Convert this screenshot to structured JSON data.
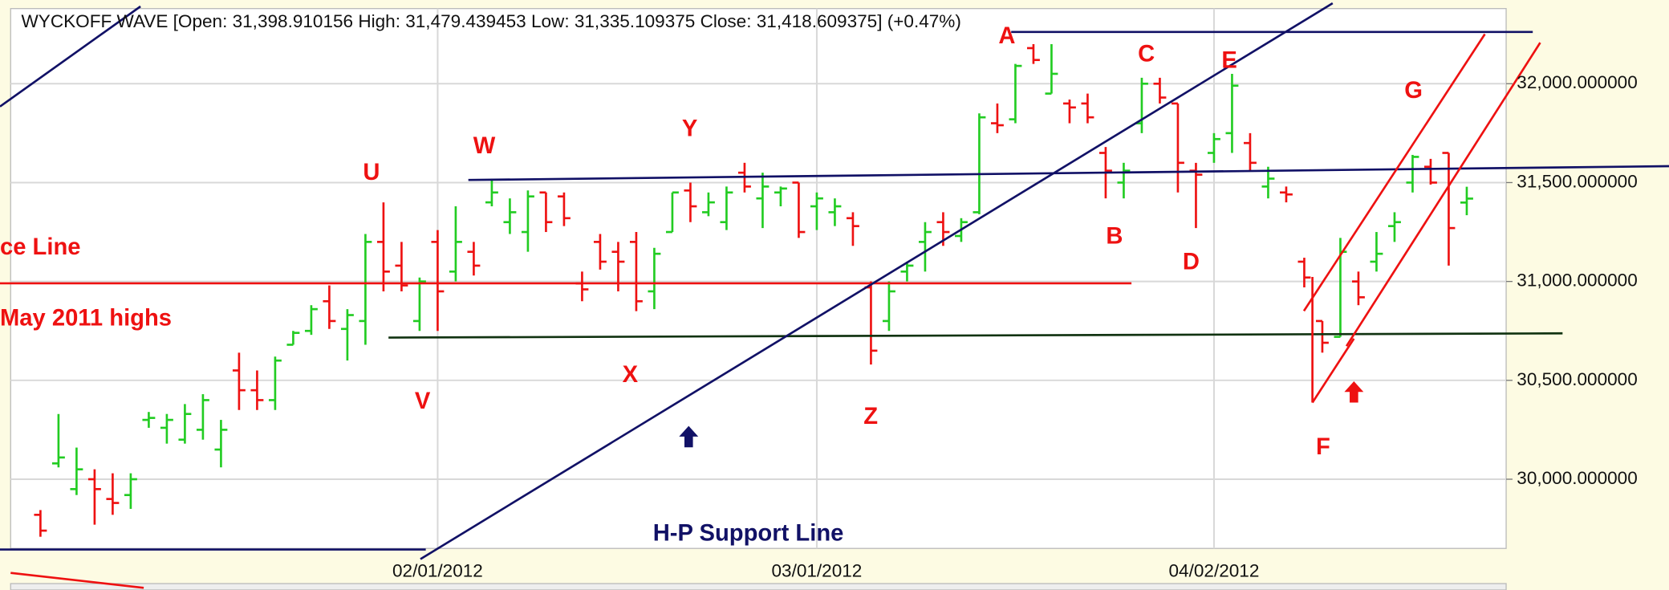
{
  "chart_data": {
    "type": "ohlc",
    "title": "WYCKOFF WAVE [Open: 31,398.910156  High: 31,479.439453  Low: 31,335.109375  Close: 31,418.609375] (+0.47%)",
    "categories": [
      null,
      null,
      null,
      null,
      null,
      null,
      null,
      null,
      null,
      null,
      null,
      null,
      null,
      null,
      null,
      null,
      null,
      null,
      null,
      null,
      null,
      null,
      "02/01/2012",
      null,
      null,
      null,
      null,
      null,
      null,
      null,
      null,
      null,
      null,
      null,
      null,
      null,
      null,
      null,
      null,
      null,
      null,
      null,
      null,
      "03/01/2012",
      null,
      null,
      null,
      null,
      null,
      null,
      null,
      null,
      null,
      null,
      null,
      null,
      null,
      null,
      null,
      null,
      null,
      null,
      null,
      null,
      null,
      "04/02/2012",
      null,
      null,
      null,
      null,
      null,
      null,
      null,
      null,
      null,
      null,
      null,
      null,
      null,
      null
    ],
    "open": [
      29820,
      30080,
      29950,
      30000,
      29900,
      29920,
      30300,
      30260,
      30200,
      30250,
      30150,
      30550,
      30450,
      30400,
      30680,
      30750,
      30900,
      30760,
      30800,
      31200,
      31080,
      30800,
      31200,
      31050,
      31150,
      31400,
      31300,
      31250,
      31450,
      31430,
      30990,
      31200,
      31150,
      31200,
      30950,
      31250,
      31460,
      31350,
      31300,
      31550,
      31420,
      31450,
      31500,
      31380,
      31350,
      31320,
      30970,
      30800,
      31050,
      31200,
      31300,
      31230,
      31350,
      31800,
      31820,
      32180,
      31950,
      31900,
      31900,
      31650,
      31500,
      31800,
      32000,
      31900,
      31560,
      31650,
      31750,
      31700,
      31480,
      31450,
      31100,
      30800,
      30720,
      31000,
      31100,
      31280,
      31500,
      31580,
      31650,
      31399
    ],
    "high": [
      29844,
      30330,
      30160,
      30050,
      30030,
      30030,
      30340,
      30330,
      30380,
      30430,
      30300,
      30640,
      30550,
      30620,
      30750,
      30880,
      30980,
      30860,
      31240,
      31400,
      31200,
      31020,
      31260,
      31380,
      31200,
      31520,
      31420,
      31460,
      31450,
      31450,
      31050,
      31240,
      31200,
      31250,
      31170,
      31450,
      31500,
      31450,
      31480,
      31600,
      31550,
      31480,
      31500,
      31450,
      31420,
      31350,
      31000,
      31000,
      31100,
      31300,
      31350,
      31320,
      31850,
      31900,
      32100,
      32200,
      32200,
      31920,
      31950,
      31680,
      31600,
      32030,
      32030,
      31900,
      31600,
      31750,
      32050,
      31750,
      31580,
      31480,
      31120,
      30800,
      31220,
      31050,
      31250,
      31350,
      31640,
      31620,
      31650,
      31479
    ],
    "low": [
      29709,
      30060,
      29920,
      29770,
      29820,
      29850,
      30260,
      30180,
      30180,
      30200,
      30060,
      30350,
      30350,
      30350,
      30680,
      30730,
      30760,
      30600,
      30680,
      30950,
      30950,
      30750,
      30750,
      31000,
      31030,
      31380,
      31240,
      31150,
      31250,
      31280,
      30900,
      31060,
      30950,
      30850,
      30860,
      31250,
      31300,
      31330,
      31260,
      31450,
      31270,
      31380,
      31220,
      31260,
      31280,
      31180,
      30580,
      30750,
      31000,
      31050,
      31180,
      31200,
      31340,
      31750,
      31800,
      32100,
      31950,
      31800,
      31800,
      31420,
      31420,
      31750,
      31900,
      31450,
      31270,
      31600,
      31650,
      31560,
      31420,
      31400,
      30970,
      30640,
      30720,
      30880,
      31050,
      31200,
      31450,
      31490,
      31080,
      31335
    ],
    "close": [
      29740,
      30110,
      30050,
      29950,
      29880,
      30000,
      30310,
      30300,
      30330,
      30400,
      30250,
      30450,
      30400,
      30600,
      30740,
      30860,
      30800,
      30830,
      31200,
      31050,
      30980,
      31000,
      30950,
      31200,
      31080,
      31450,
      31350,
      31430,
      31300,
      31320,
      30960,
      31100,
      31100,
      30900,
      31140,
      31450,
      31380,
      31400,
      31450,
      31480,
      31480,
      31470,
      31250,
      31420,
      31380,
      31280,
      30650,
      30950,
      31080,
      31250,
      31250,
      31300,
      31830,
      31790,
      32090,
      32120,
      32050,
      31880,
      31830,
      31560,
      31560,
      32000,
      31930,
      31600,
      31540,
      31720,
      31990,
      31600,
      31520,
      31440,
      31020,
      30690,
      31150,
      30920,
      31140,
      31300,
      31630,
      31500,
      31270,
      31419
    ],
    "up_color": "#22cc22",
    "down_color": "#ee1111",
    "ylim": [
      29650,
      32380
    ],
    "yticks": [
      {
        "value": 30000,
        "label": "30,000.000000"
      },
      {
        "value": 30500,
        "label": "30,500.000000"
      },
      {
        "value": 31000,
        "label": "31,000.000000"
      },
      {
        "value": 31500,
        "label": "31,500.000000"
      },
      {
        "value": 32000,
        "label": "32,000.000000"
      }
    ],
    "grid": true,
    "annotations": [
      "A",
      "C",
      "E",
      "G",
      "W",
      "Y",
      "U",
      "B",
      "D",
      "ce Line",
      "May 2011 highs",
      "X",
      "V",
      "Z",
      "F",
      "H-P Support Line"
    ]
  }
}
